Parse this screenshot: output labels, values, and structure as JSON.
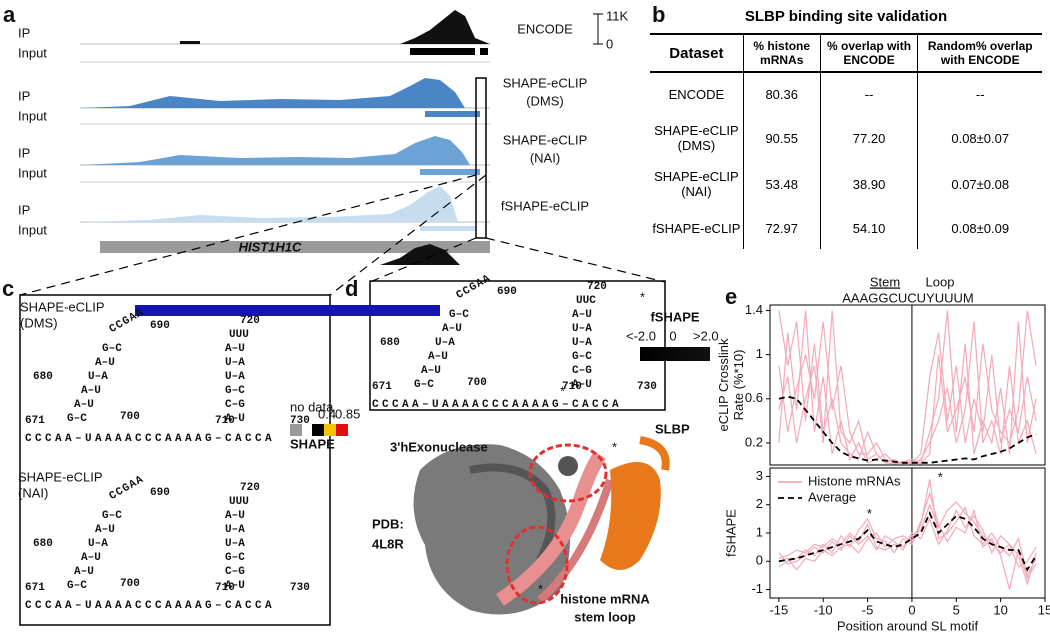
{
  "panel_a": {
    "label": "a",
    "tracks": [
      {
        "ip": "IP",
        "input": "Input",
        "name": [
          "ENCODE"
        ]
      },
      {
        "ip": "IP",
        "input": "Input",
        "name": [
          "SHAPE-eCLIP",
          "(DMS)"
        ]
      },
      {
        "ip": "IP",
        "input": "Input",
        "name": [
          "SHAPE-eCLIP",
          "(NAI)"
        ]
      },
      {
        "ip": "IP",
        "input": "Input",
        "name": [
          "fSHAPE-eCLIP"
        ]
      }
    ],
    "scale_max": "11K",
    "scale_min": "0",
    "gene": "HIST1H1C"
  },
  "panel_b": {
    "label": "b",
    "title": "SLBP binding site validation",
    "table": {
      "header": [
        "Dataset",
        "% histone mRNAs",
        "% overlap with ENCODE",
        "Random% overlap with ENCODE"
      ],
      "rows": [
        [
          "ENCODE",
          "80.36",
          "--",
          "--"
        ],
        [
          "SHAPE-eCLIP (DMS)",
          "90.55",
          "77.20",
          "0.08±0.07"
        ],
        [
          "SHAPE-eCLIP (NAI)",
          "53.48",
          "38.90",
          "0.07±0.08"
        ],
        [
          "fSHAPE-eCLIP",
          "72.97",
          "54.10",
          "0.08±0.09"
        ]
      ]
    }
  },
  "panel_c": {
    "label": "c",
    "structures": [
      {
        "title": [
          "SHAPE-eCLIP",
          "(DMS)"
        ],
        "stem1": [
          "G–C",
          "A–U",
          "A–U",
          "U–A",
          "A–U",
          "G–C"
        ],
        "loop1": "CCGAA",
        "stem2": [
          "A–U",
          "C–G",
          "G–C",
          "U–A",
          "U–A",
          "A–U"
        ],
        "loop2": "UUU",
        "base": "CCCAA–UAAAACCCAAAAG–CACCA",
        "numbers": [
          "671",
          "680",
          "690",
          "700",
          "710",
          "720",
          "730"
        ]
      },
      {
        "title": [
          "SHAPE-eCLIP",
          "(NAI)"
        ],
        "stem1": [
          "G–C",
          "A–U",
          "A–U",
          "U–A",
          "A–U",
          "G–C"
        ],
        "loop1": "CCGAA",
        "stem2": [
          "A–U",
          "C–G",
          "G–C",
          "U–A",
          "U–A",
          "A–U"
        ],
        "loop2": "UUU",
        "base": "CCCAA–UAAAACCCAAAAG–CACCA",
        "numbers": [
          "671",
          "680",
          "690",
          "700",
          "710",
          "720",
          "730"
        ]
      }
    ],
    "legend": {
      "no_data": "no data",
      "low": "0.4",
      "high": "0.85",
      "title": "SHAPE"
    }
  },
  "panel_d": {
    "label": "d",
    "structure": {
      "stem1": [
        "G–C",
        "A–U",
        "A–U",
        "U–A",
        "A–U",
        "G–C"
      ],
      "loop1": "CCGAA",
      "stem2": [
        "A–U",
        "C–G",
        "G–C",
        "U–A",
        "U–A",
        "A–U"
      ],
      "loop2": "UUC",
      "base": "CCCAA–UAAAACCCAAAAG–CACCA",
      "numbers": [
        "671",
        "680",
        "690",
        "700",
        "710",
        "720",
        "730"
      ]
    },
    "stars": [
      "*",
      "*"
    ],
    "legend": {
      "title": "fSHAPE",
      "low": "<-2.0",
      "mid": "0",
      "high": ">2.0"
    },
    "protein": {
      "exonuclease": "3'hExonuclease",
      "slbp": "SLBP",
      "pdb": [
        "PDB:",
        "4L8R"
      ],
      "rna": [
        "histone mRNA",
        "stem loop"
      ],
      "stars": [
        "*",
        "*"
      ]
    }
  },
  "panel_e": {
    "label": "e",
    "stem": "Stem",
    "loop": "Loop",
    "motif": "AAAGGCUCUYUUUM"
  },
  "chart_data": [
    {
      "type": "line",
      "ylabel": [
        "eCLIP Crosslink",
        "Rate (%*10)"
      ],
      "x": [
        -15,
        -14,
        -13,
        -12,
        -11,
        -10,
        -9,
        -8,
        -7,
        -6,
        -5,
        -4,
        -3,
        -2,
        -1,
        0,
        1,
        2,
        3,
        4,
        5,
        6,
        7,
        8,
        9,
        10,
        11,
        12,
        13,
        14
      ],
      "xlim": [
        -16,
        15
      ],
      "ylim": [
        0,
        1.45
      ],
      "yticks": [
        0.2,
        0.6,
        1.0,
        1.4
      ],
      "series": [
        {
          "name": "Histone mRNAs",
          "color": "#f4a9b8",
          "lines": [
            [
              1.4,
              0.9,
              1.3,
              0.4,
              1.1,
              0.3,
              0.6,
              0.2,
              0.1,
              0.05,
              0.3,
              0.1,
              0.02,
              0.05,
              0.01,
              0.02,
              0.1,
              0.8,
              1.2,
              0.4,
              0.9,
              0.2,
              0.6,
              0.3,
              1.0,
              0.2,
              0.5,
              0.3,
              0.8,
              0.4
            ],
            [
              0.2,
              1.2,
              0.5,
              1.4,
              0.3,
              0.8,
              0.1,
              0.4,
              0.05,
              0.2,
              0.02,
              0.05,
              0.1,
              0.02,
              0.03,
              0.05,
              0.02,
              0.3,
              0.6,
              1.4,
              0.3,
              1.1,
              0.1,
              0.4,
              0.2,
              0.7,
              0.1,
              1.3,
              0.2,
              0.6
            ],
            [
              0.9,
              0.3,
              0.7,
              1.0,
              0.6,
              1.3,
              0.5,
              0.9,
              0.3,
              0.1,
              0.1,
              0.2,
              0.05,
              0.03,
              0.02,
              0.01,
              0.05,
              0.2,
              0.4,
              0.7,
              0.2,
              0.5,
              1.3,
              0.2,
              0.4,
              0.1,
              0.9,
              0.2,
              0.4,
              0.1
            ],
            [
              0.5,
              0.8,
              0.2,
              0.6,
              0.9,
              0.2,
              1.4,
              0.3,
              0.2,
              0.4,
              0.05,
              0.1,
              0.02,
              0.01,
              0.02,
              0.03,
              0.01,
              0.1,
              1.0,
              0.3,
              0.5,
              0.8,
              0.3,
              1.1,
              0.5,
              0.3,
              0.2,
              0.5,
              1.4,
              0.9
            ]
          ]
        },
        {
          "name": "Average",
          "color": "#000000",
          "dashed": true,
          "values": [
            0.6,
            0.62,
            0.6,
            0.5,
            0.4,
            0.3,
            0.2,
            0.12,
            0.08,
            0.06,
            0.04,
            0.05,
            0.04,
            0.03,
            0.02,
            0.02,
            0.02,
            0.02,
            0.03,
            0.04,
            0.05,
            0.06,
            0.05,
            0.08,
            0.1,
            0.12,
            0.15,
            0.2,
            0.25,
            0.28
          ]
        }
      ]
    },
    {
      "type": "line",
      "ylabel": [
        "fSHAPE"
      ],
      "xlabel": "Position around SL motif",
      "x": [
        -15,
        -14,
        -13,
        -12,
        -11,
        -10,
        -9,
        -8,
        -7,
        -6,
        -5,
        -4,
        -3,
        -2,
        -1,
        0,
        1,
        2,
        3,
        4,
        5,
        6,
        7,
        8,
        9,
        10,
        11,
        12,
        13,
        14
      ],
      "xlim": [
        -16,
        15
      ],
      "ylim": [
        -1.3,
        3.3
      ],
      "xticks": [
        -15,
        -10,
        -5,
        0,
        5,
        10,
        15
      ],
      "yticks": [
        -1,
        0,
        1,
        2,
        3
      ],
      "legend": "upper left",
      "stars": [
        "*",
        "*"
      ],
      "series": [
        {
          "name": "Histone mRNAs",
          "color": "#f4a9b8",
          "lines": [
            [
              0.1,
              0.2,
              0.4,
              0.3,
              0.6,
              0.5,
              0.8,
              0.6,
              1.0,
              0.7,
              1.3,
              0.5,
              0.4,
              0.6,
              0.5,
              0.9,
              1.1,
              2.0,
              1.2,
              1.8,
              2.1,
              1.7,
              1.4,
              0.9,
              0.7,
              0.3,
              0.6,
              0.2,
              -0.8,
              0.3
            ],
            [
              -0.2,
              0.0,
              0.1,
              0.4,
              0.2,
              0.6,
              0.3,
              0.9,
              0.5,
              1.1,
              1.5,
              0.8,
              0.7,
              0.3,
              0.8,
              0.6,
              1.3,
              2.9,
              0.8,
              1.0,
              1.4,
              1.9,
              0.9,
              0.6,
              1.0,
              0.5,
              0.2,
              0.8,
              -0.5,
              0.1
            ],
            [
              0.3,
              -0.1,
              0.0,
              0.2,
              0.5,
              0.3,
              0.7,
              0.4,
              0.9,
              0.6,
              0.9,
              0.4,
              0.9,
              0.7,
              0.4,
              1.0,
              0.8,
              1.5,
              0.6,
              1.1,
              1.8,
              1.2,
              1.6,
              1.1,
              0.3,
              0.9,
              0.6,
              -0.2,
              0.0,
              0.5
            ],
            [
              0.0,
              0.1,
              -0.3,
              0.1,
              0.0,
              0.4,
              0.2,
              0.5,
              0.6,
              0.3,
              0.8,
              1.0,
              0.5,
              0.8,
              0.9,
              0.7,
              1.4,
              2.4,
              1.3,
              0.7,
              1.2,
              1.0,
              1.8,
              0.5,
              0.8,
              0.2,
              -1.0,
              0.4,
              -0.6,
              -0.1
            ]
          ]
        },
        {
          "name": "Average",
          "color": "#000000",
          "dashed": true,
          "values": [
            0.0,
            0.05,
            0.1,
            0.2,
            0.3,
            0.4,
            0.5,
            0.6,
            0.7,
            0.8,
            1.1,
            0.7,
            0.6,
            0.5,
            0.6,
            0.8,
            1.0,
            1.7,
            1.0,
            1.3,
            1.6,
            1.5,
            1.2,
            0.8,
            0.6,
            0.5,
            0.4,
            0.4,
            -0.3,
            0.2
          ]
        }
      ]
    }
  ]
}
